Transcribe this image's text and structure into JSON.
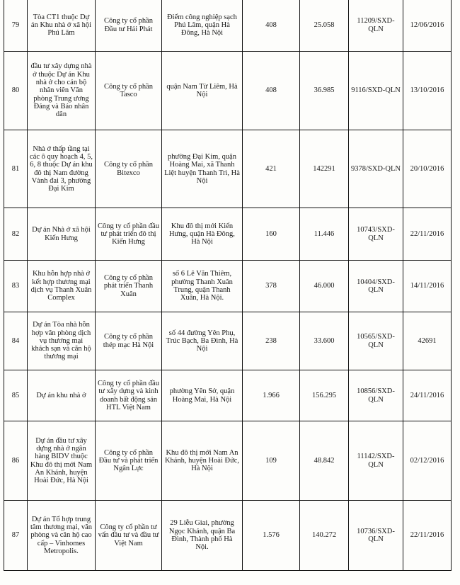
{
  "table": {
    "rows": [
      {
        "no": "79",
        "project": "Tòa CT1 thuộc Dự án Khu nhà ở xã hội Phú Lãm",
        "company": "Công ty cổ phần Đầu tư Hải Phát",
        "location": "Điểm công nghiệp sạch Phú Lãm, quận Hà Đông, Hà Nội",
        "units": "408",
        "area": "25.058",
        "decision": "11209/SXD-QLN",
        "date": "12/06/2016"
      },
      {
        "no": "80",
        "project": "đầu tư xây dựng nhà ở thuộc Dự án Khu nhà ở cho cán bộ nhân viên Văn phòng Trung ương Đảng và Báo nhân dân",
        "company": "Công ty cổ phần Tasco",
        "location": "quận Nam Từ Liêm, Hà Nội",
        "units": "408",
        "area": "36.985",
        "decision": "9116/SXD-QLN",
        "date": "13/10/2016"
      },
      {
        "no": "81",
        "project": "Nhà ở thấp tầng tại các ô quy hoạch 4, 5, 6, 8 thuộc Dự án khu đô thị Nam đường Vành đai 3, phường Đại Kim",
        "company": "Công ty cổ phần Bitexco",
        "location": "phường Đại Kim, quận Hoàng Mai, xã Thanh Liệt huyện Thanh Trì, Hà Nội",
        "units": "421",
        "area": "142291",
        "decision": "9378/SXD-QLN",
        "date": "20/10/2016"
      },
      {
        "no": "82",
        "project": "Dự án Nhà ở xã hội Kiến Hưng",
        "company": "Công ty cổ phần đầu tư phát triển đô thị Kiến Hưng",
        "location": "Khu đô thị mới Kiến Hưng, quận Hà Đông, Hà Nội",
        "units": "160",
        "area": "11.446",
        "decision": "10743/SXD-QLN",
        "date": "22/11/2016"
      },
      {
        "no": "83",
        "project": "Khu hỗn hợp nhà ở kết hợp thương mại dịch vụ Thanh Xuân Complex",
        "company": "Công ty cổ phần phát triển Thanh Xuân",
        "location": "số 6 Lê Văn Thiêm, phường Thanh Xuân Trung, quận Thanh Xuân, Hà Nội.",
        "units": "378",
        "area": "46.000",
        "decision": "10404/SXD-QLN",
        "date": "14/11/2016"
      },
      {
        "no": "84",
        "project": "Dự án Tòa nhà hỗn hợp văn phòng dịch vụ thương mại khách sạn và căn hộ thương mại",
        "company": "Công ty cổ phần thép mạc Hà Nội",
        "location": "số 44 đường Yên Phụ, Trúc Bạch, Ba Đình, Hà Nội",
        "units": "238",
        "area": "33.600",
        "decision": "10565/SXD-QLN",
        "date": "42691"
      },
      {
        "no": "85",
        "project": "Dự án khu nhà ở",
        "company": "Công ty cổ phần đầu tư xây dựng và kinh doanh bất động sản HTL Việt Nam",
        "location": "phường Yên Sở, quận Hoàng Mai, Hà Nội",
        "units": "1.966",
        "area": "156.295",
        "decision": "10856/SXD-QLN",
        "date": "24/11/2016"
      },
      {
        "no": "86",
        "project": "Dự án đầu tư xây dựng nhà ở ngân hàng BIDV thuộc Khu đô thị mới Nam An Khánh, huyện Hoài Đức, Hà Nội",
        "company": "Công ty cổ phần Đầu tư và phát triển Ngân Lực",
        "location": "Khu đô thị mới Nam An Khánh, huyện Hoài Đức, Hà Nội",
        "units": "109",
        "area": "48.842",
        "decision": "11142/SXD-QLN",
        "date": "02/12/2016"
      },
      {
        "no": "87",
        "project": "Dự án Tổ hợp trung tâm thương mại, văn phòng và căn hộ cao cấp – Vinhomes Metropolis.",
        "company": "Công ty cổ phần tư vấn đầu tư và đầu tư Việt Nam",
        "location": "29 Liễu Giai, phường Ngọc Khánh, quận Ba Đình, Thành phố Hà Nội.",
        "units": "1.576",
        "area": "140.272",
        "decision": "10736/SXD-QLN",
        "date": "22/11/2016"
      }
    ]
  }
}
